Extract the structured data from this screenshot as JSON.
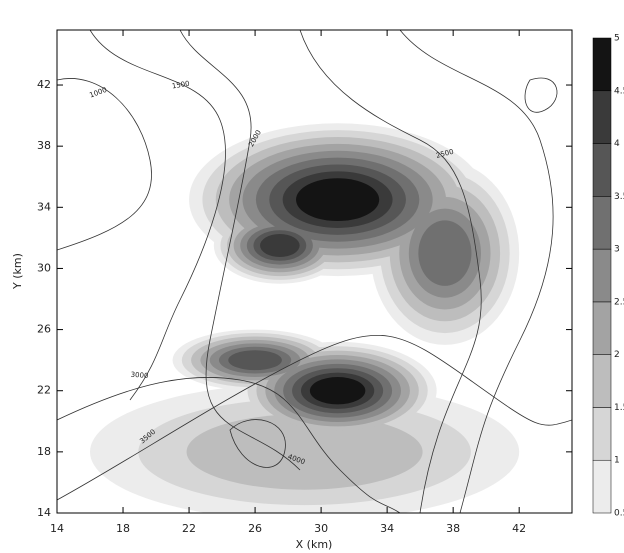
{
  "chart_data": {
    "type": "contour",
    "x_label": "X (km)",
    "y_label": "Y (km)",
    "xlim": [
      14,
      45.2
    ],
    "ylim": [
      14,
      45.6
    ],
    "xticks": [
      14,
      18,
      22,
      26,
      30,
      34,
      38,
      42
    ],
    "yticks": [
      14,
      18,
      22,
      26,
      30,
      34,
      38,
      42
    ],
    "levels": [
      0.5,
      1,
      1.5,
      2,
      2.5,
      3,
      3.5,
      4,
      4.5,
      5
    ],
    "colors": [
      "#ececec",
      "#d6d6d6",
      "#bdbdbd",
      "#a3a3a3",
      "#8a8a8a",
      "#707070",
      "#565656",
      "#3a3a3a",
      "#141414"
    ],
    "contour_levels": [
      1000,
      1500,
      2000,
      2500,
      3000,
      3500,
      4000
    ]
  }
}
